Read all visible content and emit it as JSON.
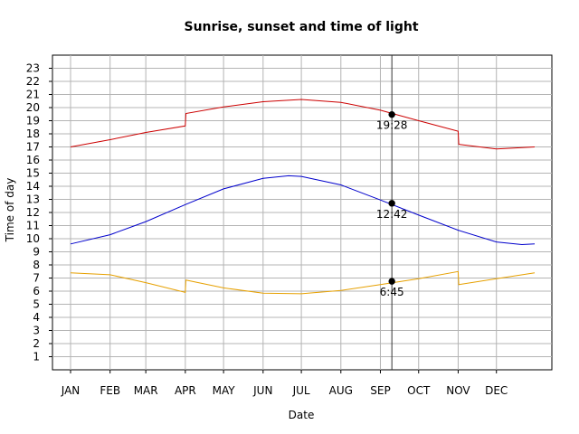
{
  "chart_data": {
    "type": "line",
    "title": "Sunrise, sunset and time of light",
    "xlabel": "Date",
    "ylabel": "Time of day",
    "month_labels": [
      "JAN",
      "FEB",
      "MAR",
      "APR",
      "MAY",
      "JUN",
      "JUL",
      "AUG",
      "SEP",
      "OCT",
      "NOV",
      "DEC"
    ],
    "y_ticks": [
      "1",
      "2",
      "3",
      "4",
      "5",
      "6",
      "7",
      "8",
      "9",
      "10",
      "11",
      "12",
      "13",
      "14",
      "15",
      "16",
      "17",
      "18",
      "19",
      "20",
      "21",
      "22",
      "23"
    ],
    "ylim": [
      0,
      24
    ],
    "xlim_days": [
      1,
      365
    ],
    "grid": true,
    "series": [
      {
        "color": "#cc0000",
        "points": [
          [
            1,
            17.0
          ],
          [
            32,
            17.55
          ],
          [
            60,
            18.1
          ],
          [
            91,
            18.6
          ],
          [
            91.5,
            19.55
          ],
          [
            121,
            20.05
          ],
          [
            152,
            20.45
          ],
          [
            182,
            20.62
          ],
          [
            213,
            20.4
          ],
          [
            244,
            19.8
          ],
          [
            274,
            19.0
          ],
          [
            305,
            18.2
          ],
          [
            305.5,
            17.2
          ],
          [
            335,
            16.85
          ],
          [
            365,
            17.0
          ]
        ]
      },
      {
        "color": "#0000cc",
        "points": [
          [
            1,
            9.6
          ],
          [
            32,
            10.3
          ],
          [
            60,
            11.3
          ],
          [
            91,
            12.6
          ],
          [
            121,
            13.8
          ],
          [
            152,
            14.6
          ],
          [
            172,
            14.8
          ],
          [
            182,
            14.75
          ],
          [
            213,
            14.1
          ],
          [
            244,
            12.95
          ],
          [
            274,
            11.8
          ],
          [
            305,
            10.65
          ],
          [
            335,
            9.75
          ],
          [
            355,
            9.55
          ],
          [
            365,
            9.6
          ]
        ]
      },
      {
        "color": "#e6a000",
        "points": [
          [
            1,
            7.4
          ],
          [
            32,
            7.25
          ],
          [
            60,
            6.65
          ],
          [
            91,
            5.9
          ],
          [
            91.5,
            6.85
          ],
          [
            121,
            6.25
          ],
          [
            152,
            5.85
          ],
          [
            182,
            5.8
          ],
          [
            213,
            6.05
          ],
          [
            244,
            6.5
          ],
          [
            274,
            6.95
          ],
          [
            305,
            7.5
          ],
          [
            305.5,
            6.5
          ],
          [
            335,
            6.95
          ],
          [
            365,
            7.4
          ]
        ]
      }
    ],
    "marker_day": 253,
    "annotations": [
      {
        "label": "19:28",
        "y": 19.47
      },
      {
        "label": "12:42",
        "y": 12.7
      },
      {
        "label": "6:45",
        "y": 6.75
      }
    ]
  }
}
